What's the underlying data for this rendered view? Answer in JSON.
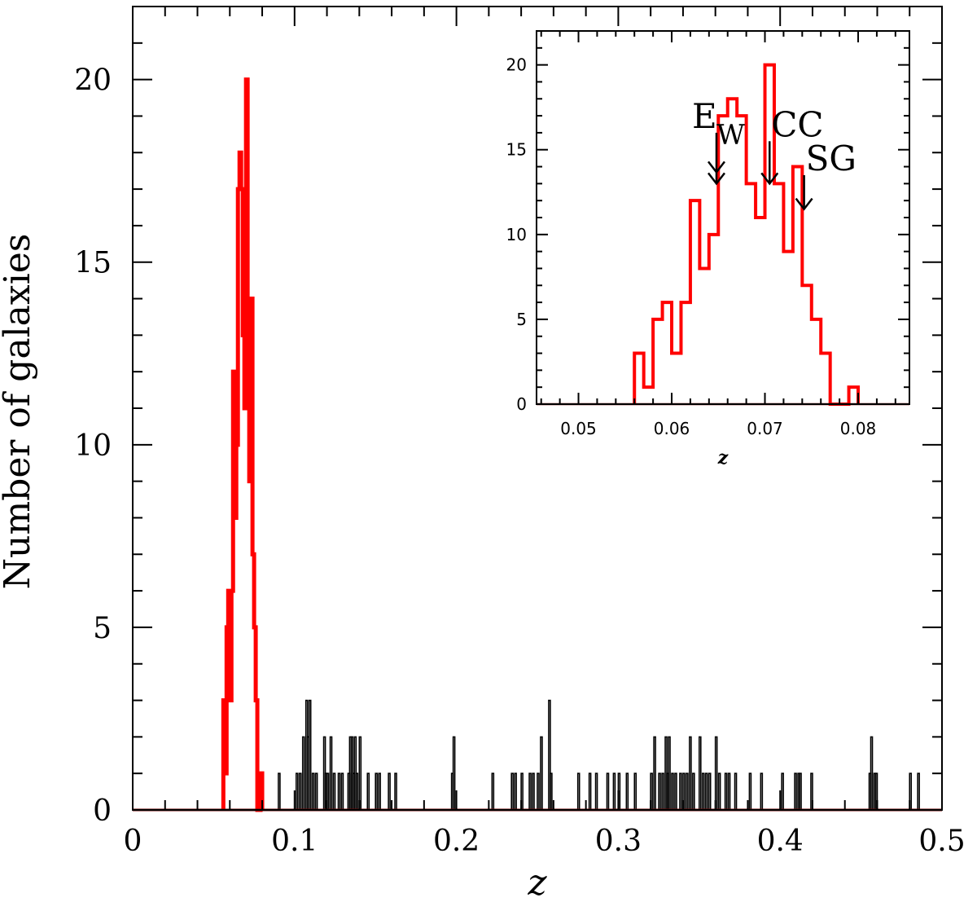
{
  "chart_data": [
    {
      "type": "histogram",
      "xlabel": "z",
      "ylabel": "Number of galaxies",
      "xlim": [
        0,
        0.5
      ],
      "ylim": [
        0,
        22
      ],
      "xticks": [
        "0",
        "0.1",
        "0.2",
        "0.3",
        "0.4",
        "0.5"
      ],
      "yticks": [
        "0",
        "5",
        "10",
        "15",
        "20"
      ],
      "bin_width": 0.001,
      "colors": {
        "members": "#ff0000",
        "field": "#000000",
        "baseline": "#6b0000"
      },
      "series": [
        {
          "role": "cluster members",
          "bins_start": [
            0.056,
            0.057,
            0.058,
            0.059,
            0.06,
            0.061,
            0.062,
            0.063,
            0.064,
            0.065,
            0.066,
            0.067,
            0.068,
            0.069,
            0.07,
            0.071,
            0.072,
            0.073,
            0.074,
            0.075,
            0.076,
            0.077,
            0.078,
            0.079
          ],
          "counts": [
            3,
            1,
            5,
            6,
            3,
            6,
            12,
            8,
            10,
            17,
            18,
            17,
            13,
            11,
            20,
            13,
            9,
            14,
            7,
            5,
            3,
            0,
            0,
            1
          ]
        },
        {
          "role": "field galaxies",
          "x": [
            0.09,
            0.101,
            0.103,
            0.105,
            0.107,
            0.108,
            0.109,
            0.111,
            0.113,
            0.118,
            0.119,
            0.12,
            0.122,
            0.124,
            0.127,
            0.129,
            0.133,
            0.134,
            0.135,
            0.136,
            0.137,
            0.138,
            0.14,
            0.145,
            0.15,
            0.152,
            0.158,
            0.162,
            0.197,
            0.198,
            0.222,
            0.234,
            0.236,
            0.24,
            0.245,
            0.247,
            0.25,
            0.252,
            0.257,
            0.258,
            0.275,
            0.282,
            0.286,
            0.293,
            0.297,
            0.3,
            0.305,
            0.31,
            0.32,
            0.322,
            0.325,
            0.327,
            0.329,
            0.33,
            0.331,
            0.333,
            0.335,
            0.338,
            0.34,
            0.342,
            0.344,
            0.346,
            0.35,
            0.352,
            0.354,
            0.356,
            0.36,
            0.362,
            0.366,
            0.368,
            0.372,
            0.381,
            0.388,
            0.401,
            0.409,
            0.411,
            0.412,
            0.419,
            0.455,
            0.456,
            0.458,
            0.459,
            0.48,
            0.485
          ],
          "counts": [
            1,
            1,
            1,
            2,
            3,
            2,
            3,
            1,
            1,
            2,
            1,
            1,
            2,
            1,
            1,
            1,
            1,
            2,
            2,
            1,
            2,
            1,
            2,
            1,
            1,
            1,
            1,
            1,
            1,
            2,
            1,
            1,
            1,
            1,
            1,
            1,
            1,
            2,
            3,
            1,
            1,
            1,
            1,
            1,
            1,
            1,
            1,
            1,
            1,
            2,
            1,
            1,
            2,
            1,
            2,
            1,
            1,
            1,
            1,
            1,
            2,
            1,
            2,
            1,
            1,
            1,
            2,
            1,
            1,
            1,
            1,
            1,
            1,
            1,
            1,
            1,
            1,
            1,
            1,
            2,
            1,
            1,
            1,
            1
          ]
        }
      ]
    },
    {
      "type": "histogram",
      "xlabel": "z",
      "ylabel": "",
      "xlim": [
        0.0455,
        0.0855
      ],
      "ylim": [
        0,
        22
      ],
      "xticks": [
        "0.05",
        "0.06",
        "0.07",
        "0.08"
      ],
      "yticks": [
        "0",
        "5",
        "10",
        "15",
        "20"
      ],
      "bin_width": 0.001,
      "colors": {
        "members": "#ff0000"
      },
      "series": [
        {
          "role": "cluster members",
          "bins_start": [
            0.056,
            0.057,
            0.058,
            0.059,
            0.06,
            0.061,
            0.062,
            0.063,
            0.064,
            0.065,
            0.066,
            0.067,
            0.068,
            0.069,
            0.07,
            0.071,
            0.072,
            0.073,
            0.074,
            0.075,
            0.076,
            0.077,
            0.078,
            0.079
          ],
          "counts": [
            3,
            1,
            5,
            6,
            3,
            6,
            12,
            8,
            10,
            17,
            18,
            17,
            13,
            11,
            20,
            13,
            9,
            14,
            7,
            5,
            3,
            0,
            0,
            1
          ]
        }
      ],
      "annotations": [
        {
          "label": "E",
          "sub": "W",
          "z": 0.0648,
          "arrow_tip": 13.0,
          "arrow_tail": 16.0,
          "double_head": true
        },
        {
          "label": "CC",
          "sub": "",
          "z": 0.0705,
          "arrow_tip": 13.0,
          "arrow_tail": 15.5,
          "double_head": false
        },
        {
          "label": "SG",
          "sub": "",
          "z": 0.0742,
          "arrow_tip": 11.5,
          "arrow_tail": 13.5,
          "double_head": false
        }
      ]
    }
  ]
}
